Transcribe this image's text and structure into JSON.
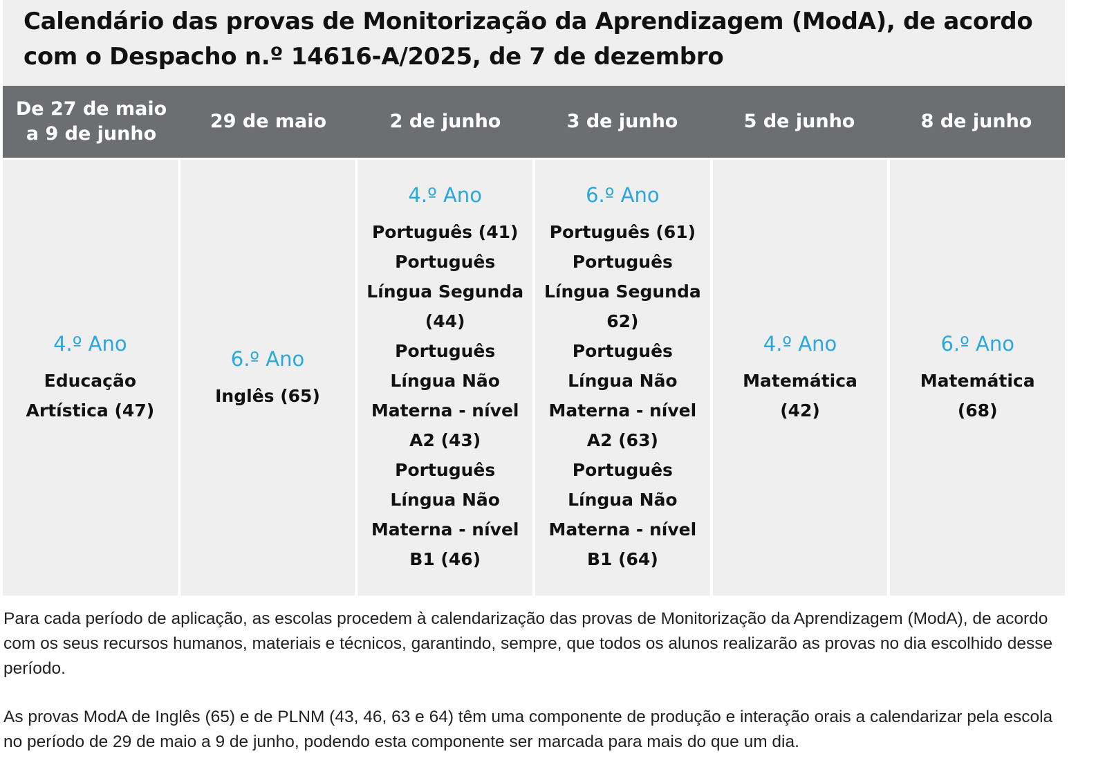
{
  "title": "Calendário das provas de Monitorização da Aprendizagem (ModA), de acordo com o Despacho n.º 14616-A/2025, de 7 de dezembro",
  "colors": {
    "header_bg": "#6d6e71",
    "cell_bg": "#efefef",
    "year_accent": "#2aa8dd"
  },
  "columns": [
    {
      "date_line1": "De 27 de maio",
      "date_line2": "a 9 de junho",
      "year": "4.º Ano",
      "subjects": [
        "Educação",
        "Artística (47)"
      ]
    },
    {
      "date_line1": "29 de maio",
      "date_line2": "",
      "year": "6.º Ano",
      "subjects": [
        "Inglês (65)"
      ]
    },
    {
      "date_line1": "2 de junho",
      "date_line2": "",
      "year": "4.º Ano",
      "subjects": [
        "Português (41)",
        "Português",
        "Língua Segunda",
        "(44)",
        "Português",
        "Língua Não",
        "Materna - nível",
        "A2 (43)",
        "Português",
        "Língua Não",
        "Materna - nível",
        "B1 (46)"
      ]
    },
    {
      "date_line1": "3 de junho",
      "date_line2": "",
      "year": "6.º Ano",
      "subjects": [
        "Português (61)",
        "Português",
        "Língua Segunda",
        "62)",
        "Português",
        "Língua Não",
        "Materna - nível",
        "A2 (63)",
        "Português",
        "Língua Não",
        "Materna - nível",
        "B1 (64)"
      ]
    },
    {
      "date_line1": "5 de junho",
      "date_line2": "",
      "year": "4.º Ano",
      "subjects": [
        "Matemática (42)"
      ]
    },
    {
      "date_line1": "8 de junho",
      "date_line2": "",
      "year": "6.º Ano",
      "subjects": [
        "Matemática (68)"
      ]
    }
  ],
  "notes": [
    "Para cada período de aplicação, as escolas procedem à calendarização das provas de Monitorização da Aprendizagem (ModA), de acordo com os seus recursos humanos, materiais e técnicos, garantindo, sempre, que todos os alunos realizarão as provas no dia escolhido desse período.",
    "As provas ModA de Inglês (65) e de PLNM (43, 46, 63 e 64) têm uma componente de produção e interação orais a calendarizar pela escola no período de 29 de maio a 9 de junho, podendo esta componente ser marcada para mais do que um dia."
  ]
}
